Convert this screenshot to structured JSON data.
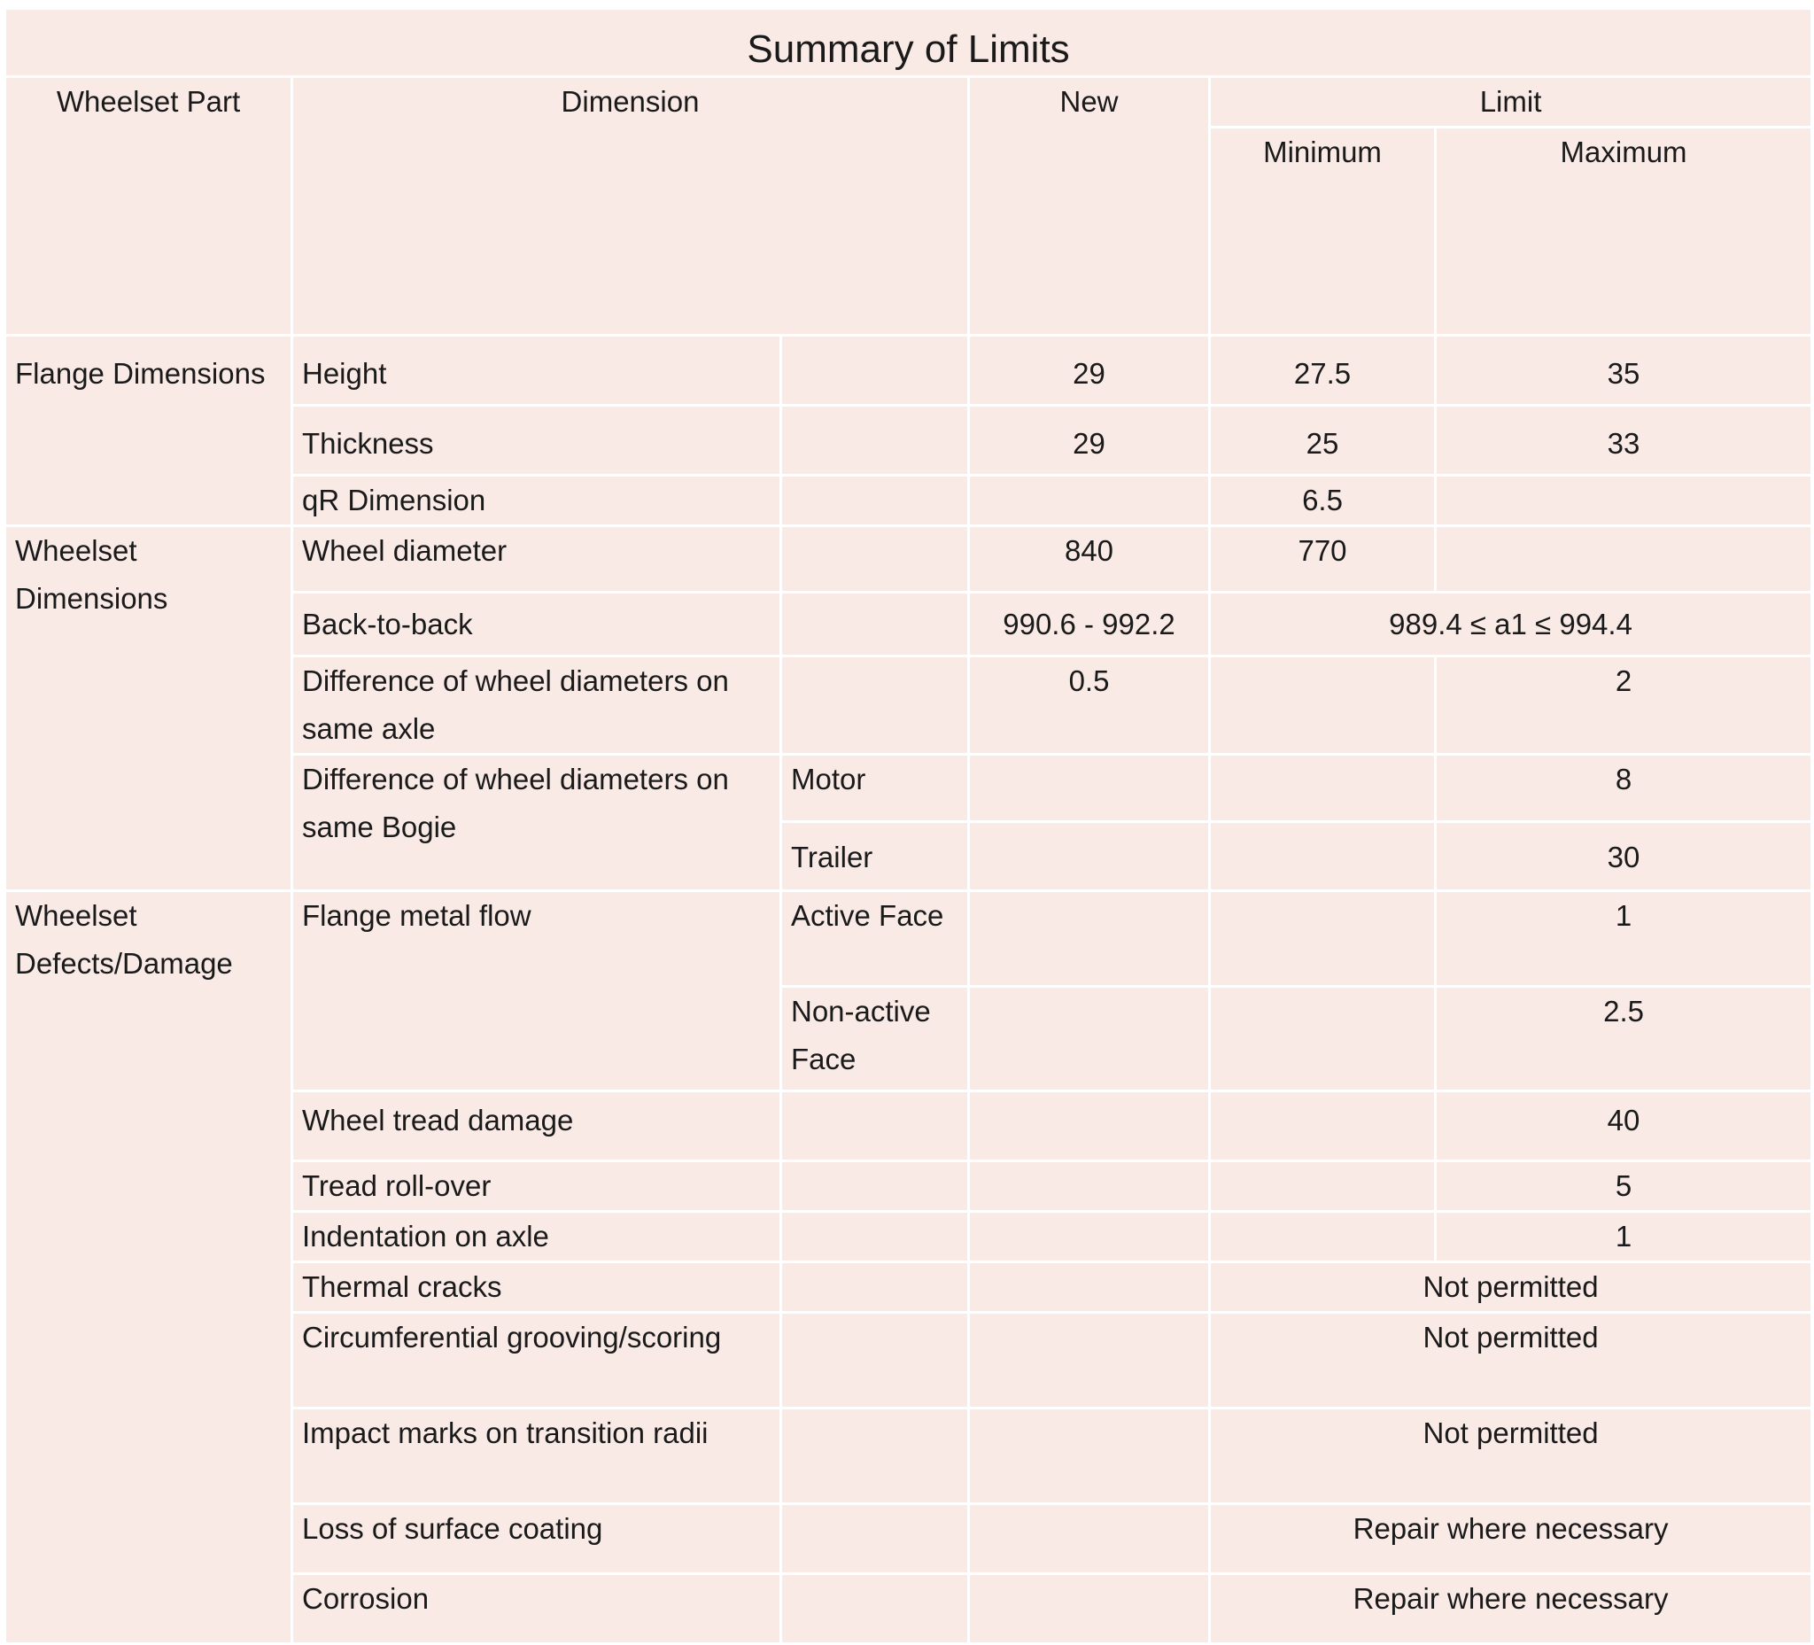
{
  "table": {
    "title": "Summary of Limits",
    "headers": {
      "part": "Wheelset Part",
      "dimension": "Dimension",
      "new": "New",
      "limit": "Limit",
      "minimum": "Minimum",
      "maximum": "Maximum"
    },
    "groups": [
      {
        "label": "Flange Dimensions"
      },
      {
        "label": "Wheelset Dimensions"
      },
      {
        "label": "Wheelset Defects/Damage"
      }
    ],
    "rows": [
      {
        "dimension": "Height",
        "new": "29",
        "min": "27.5",
        "max": "35"
      },
      {
        "dimension": "Thickness",
        "new": "29",
        "min": "25",
        "max": "33"
      },
      {
        "dimension": "qR Dimension",
        "min": "6.5"
      },
      {
        "dimension": "Wheel diameter",
        "new": "840",
        "min": "770"
      },
      {
        "dimension": "Back-to-back",
        "new": "990.6 - 992.2",
        "limit": "989.4 ≤  a1 ≤ 994.4"
      },
      {
        "dimension": "Difference of wheel diameters on same axle",
        "new": "0.5",
        "max": "2"
      },
      {
        "dimension": "Difference of wheel diameters on same Bogie",
        "sub": "Motor",
        "max": "8"
      },
      {
        "sub": "Trailer",
        "max": "30"
      },
      {
        "dimension": "Flange metal flow",
        "sub": "Active Face",
        "max": "1"
      },
      {
        "sub": "Non-active Face",
        "max": "2.5"
      },
      {
        "dimension": "Wheel tread damage",
        "max": "40"
      },
      {
        "dimension": "Tread roll-over",
        "max": "5"
      },
      {
        "dimension": "Indentation on axle",
        "max": "1"
      },
      {
        "dimension": "Thermal cracks",
        "limit": "Not permitted"
      },
      {
        "dimension": "Circumferential grooving/scoring",
        "limit": "Not permitted"
      },
      {
        "dimension": "Impact marks on transition radii",
        "limit": "Not permitted"
      },
      {
        "dimension": "Loss of surface coating",
        "limit": "Repair where necessary"
      },
      {
        "dimension": "Corrosion",
        "limit": "Repair where necessary"
      }
    ]
  }
}
